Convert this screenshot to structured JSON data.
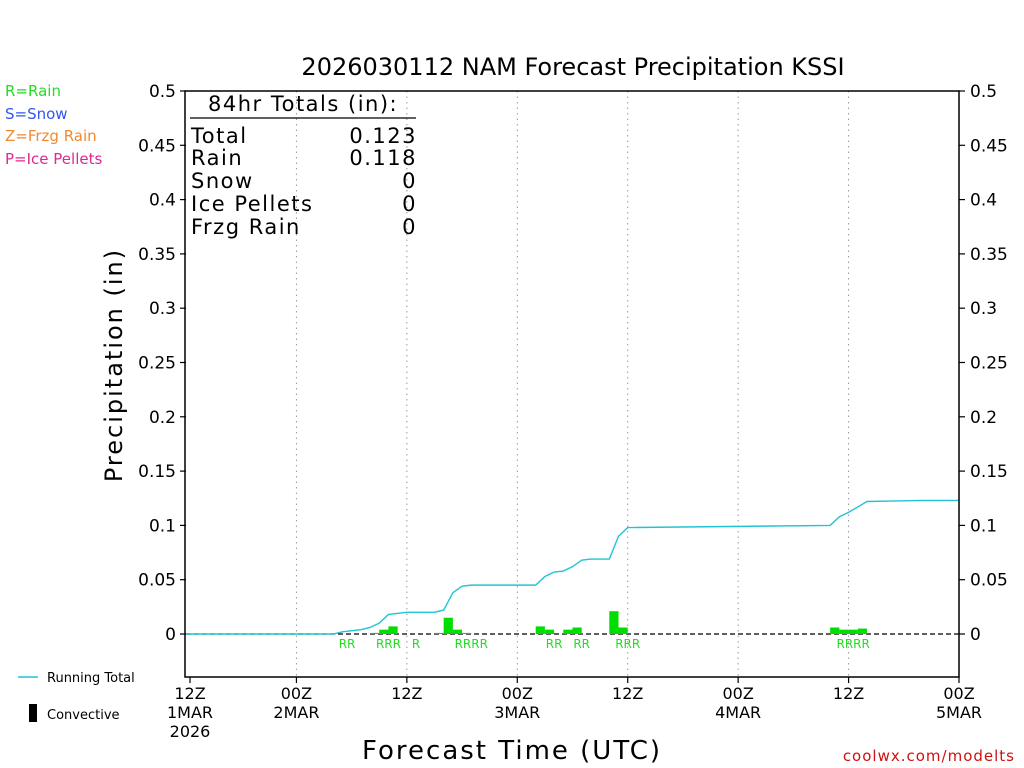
{
  "chart_data": {
    "type": "bar",
    "title": "2026030112 NAM Forecast Precipitation KSSI",
    "xlabel": "Forecast Time (UTC)",
    "ylabel": "Precipitation (in)",
    "ylim": [
      -0.04,
      0.5
    ],
    "xlim_hours": [
      0,
      84
    ],
    "grid": "vertical-dotted",
    "y_ticks": [
      {
        "v": 0,
        "label": "0"
      },
      {
        "v": 0.05,
        "label": "0.05"
      },
      {
        "v": 0.1,
        "label": "0.1"
      },
      {
        "v": 0.15,
        "label": "0.15"
      },
      {
        "v": 0.2,
        "label": "0.2"
      },
      {
        "v": 0.25,
        "label": "0.25"
      },
      {
        "v": 0.3,
        "label": "0.3"
      },
      {
        "v": 0.35,
        "label": "0.35"
      },
      {
        "v": 0.4,
        "label": "0.4"
      },
      {
        "v": 0.45,
        "label": "0.45"
      },
      {
        "v": 0.5,
        "label": "0.5"
      }
    ],
    "x_ticks": [
      {
        "h": 0,
        "lines": [
          "12Z",
          "1MAR",
          "2026"
        ]
      },
      {
        "h": 12,
        "lines": [
          "00Z",
          "2MAR"
        ]
      },
      {
        "h": 24,
        "lines": [
          "12Z"
        ]
      },
      {
        "h": 36,
        "lines": [
          "00Z",
          "3MAR"
        ]
      },
      {
        "h": 48,
        "lines": [
          "12Z"
        ]
      },
      {
        "h": 60,
        "lines": [
          "00Z",
          "4MAR"
        ]
      },
      {
        "h": 72,
        "lines": [
          "12Z"
        ]
      },
      {
        "h": 84,
        "lines": [
          "00Z",
          "5MAR"
        ]
      }
    ],
    "series": [
      {
        "name": "Hourly precipitation (Rain)",
        "type": "bar",
        "color": "#00dd00",
        "points": [
          {
            "h": 21,
            "v": 0.001,
            "type": "R"
          },
          {
            "h": 22,
            "v": 0.004,
            "type": "R"
          },
          {
            "h": 23,
            "v": 0.007,
            "type": "R"
          },
          {
            "h": 28,
            "v": 0.001,
            "type": "R"
          },
          {
            "h": 29,
            "v": 0.015,
            "type": "R"
          },
          {
            "h": 30,
            "v": 0.004,
            "type": "R"
          },
          {
            "h": 31,
            "v": 0.001,
            "type": "R"
          },
          {
            "h": 39,
            "v": 0.007,
            "type": "R"
          },
          {
            "h": 40,
            "v": 0.004,
            "type": "R"
          },
          {
            "h": 42,
            "v": 0.004,
            "type": "R"
          },
          {
            "h": 43,
            "v": 0.006,
            "type": "R"
          },
          {
            "h": 47,
            "v": 0.021,
            "type": "R"
          },
          {
            "h": 48,
            "v": 0.006,
            "type": "R"
          },
          {
            "h": 71,
            "v": 0.006,
            "type": "R"
          },
          {
            "h": 72,
            "v": 0.004,
            "type": "R"
          },
          {
            "h": 73,
            "v": 0.004,
            "type": "R"
          },
          {
            "h": 74,
            "v": 0.005,
            "type": "R"
          }
        ]
      },
      {
        "name": "Running Total",
        "type": "line",
        "color": "#22c4d4",
        "points": [
          {
            "h": 0,
            "v": 0
          },
          {
            "h": 16,
            "v": 0
          },
          {
            "h": 17,
            "v": 0.002
          },
          {
            "h": 18,
            "v": 0.003
          },
          {
            "h": 19,
            "v": 0.004
          },
          {
            "h": 20,
            "v": 0.006
          },
          {
            "h": 21,
            "v": 0.01
          },
          {
            "h": 22,
            "v": 0.018
          },
          {
            "h": 24,
            "v": 0.02
          },
          {
            "h": 27,
            "v": 0.02
          },
          {
            "h": 28,
            "v": 0.022
          },
          {
            "h": 29,
            "v": 0.038
          },
          {
            "h": 30,
            "v": 0.044
          },
          {
            "h": 31,
            "v": 0.045
          },
          {
            "h": 38,
            "v": 0.045
          },
          {
            "h": 39,
            "v": 0.053
          },
          {
            "h": 40,
            "v": 0.057
          },
          {
            "h": 41,
            "v": 0.058
          },
          {
            "h": 42,
            "v": 0.062
          },
          {
            "h": 43,
            "v": 0.068
          },
          {
            "h": 44,
            "v": 0.069
          },
          {
            "h": 46,
            "v": 0.069
          },
          {
            "h": 47,
            "v": 0.09
          },
          {
            "h": 48,
            "v": 0.098
          },
          {
            "h": 70,
            "v": 0.1
          },
          {
            "h": 71,
            "v": 0.108
          },
          {
            "h": 72,
            "v": 0.112
          },
          {
            "h": 73,
            "v": 0.117
          },
          {
            "h": 74,
            "v": 0.122
          },
          {
            "h": 80,
            "v": 0.123
          },
          {
            "h": 84,
            "v": 0.123
          }
        ]
      }
    ],
    "type_labels": [
      {
        "h": 17.5,
        "text": "RR"
      },
      {
        "h": 22,
        "text": "RRR"
      },
      {
        "h": 25,
        "text": "R"
      },
      {
        "h": 31,
        "text": "RRRR"
      },
      {
        "h": 40,
        "text": "RR"
      },
      {
        "h": 43,
        "text": "RR"
      },
      {
        "h": 48,
        "text": "RRR"
      },
      {
        "h": 72.5,
        "text": "RRRR"
      }
    ]
  },
  "totals": {
    "heading": "84hr Totals (in):",
    "rows": [
      {
        "label": "Total",
        "value": "0.123"
      },
      {
        "label": "Rain",
        "value": "0.118"
      },
      {
        "label": "Snow",
        "value": "0"
      },
      {
        "label": "Ice Pellets",
        "value": "0"
      },
      {
        "label": "Frzg Rain",
        "value": "0"
      }
    ]
  },
  "type_legend": [
    {
      "text": "R=Rain",
      "color": "#22dd22"
    },
    {
      "text": "S=Snow",
      "color": "#3355ee"
    },
    {
      "text": "Z=Frzg Rain",
      "color": "#f08a30"
    },
    {
      "text": "P=Ice Pellets",
      "color": "#e02890"
    }
  ],
  "bottom_legend": {
    "running_total": "Running Total",
    "convective": "Convective"
  },
  "credit": "coolwx.com/modelts",
  "colors": {
    "rain": "#00dd00",
    "running_total": "#22c4d4",
    "credit": "#cc1111"
  }
}
